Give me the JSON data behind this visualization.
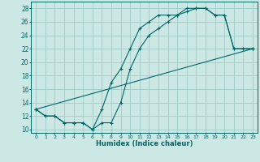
{
  "xlabel": "Humidex (Indice chaleur)",
  "bg_color": "#cce8e4",
  "grid_color": "#a0ccc8",
  "line_color": "#006666",
  "xlim": [
    -0.5,
    23.5
  ],
  "ylim": [
    9.5,
    29
  ],
  "yticks": [
    10,
    12,
    14,
    16,
    18,
    20,
    22,
    24,
    26,
    28
  ],
  "xticks": [
    0,
    1,
    2,
    3,
    4,
    5,
    6,
    7,
    8,
    9,
    10,
    11,
    12,
    13,
    14,
    15,
    16,
    17,
    18,
    19,
    20,
    21,
    22,
    23
  ],
  "series": [
    {
      "x": [
        0,
        1,
        2,
        3,
        4,
        5,
        6,
        7,
        8,
        9,
        10,
        11,
        12,
        13,
        14,
        15,
        16,
        17,
        18,
        19,
        20,
        21,
        22,
        23
      ],
      "y": [
        13,
        12,
        12,
        11,
        11,
        11,
        10,
        13,
        17,
        19,
        22,
        25,
        26,
        27,
        27,
        27,
        28,
        28,
        28,
        27,
        27,
        22,
        22,
        22
      ]
    },
    {
      "x": [
        0,
        1,
        2,
        3,
        4,
        5,
        6,
        7,
        8,
        9,
        10,
        11,
        12,
        13,
        14,
        15,
        16,
        17,
        18,
        19,
        20,
        21,
        22,
        23
      ],
      "y": [
        13,
        12,
        12,
        11,
        11,
        11,
        10,
        11,
        11,
        14,
        19,
        22,
        24,
        25,
        26,
        27,
        27.5,
        28,
        28,
        27,
        27,
        22,
        22,
        22
      ]
    },
    {
      "x": [
        0,
        23
      ],
      "y": [
        13,
        22
      ]
    }
  ]
}
